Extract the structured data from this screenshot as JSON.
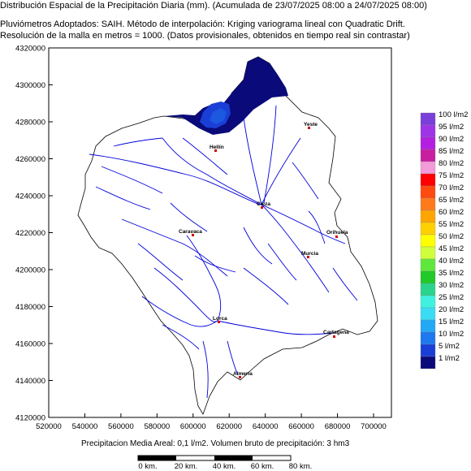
{
  "header": {
    "line1": "Distribución Espacial de la Precipitación Diaria (mm). (Acumulada de 23/07/2025 08:00 a 24/07/2025 08:00)",
    "line2": "Pluviómetros Adoptados: SAIH.  Método de interpolación: Kriging variograma lineal con Quadratic Drift.",
    "line3": "Resolución de la malla en metros = 1000. (Datos provisionales, obtenidos en tiempo real sin contrastar)"
  },
  "axes": {
    "y_ticks": [
      "4320000",
      "4300000",
      "4280000",
      "4260000",
      "4240000",
      "4220000",
      "4200000",
      "4180000",
      "4160000",
      "4140000",
      "4120000"
    ],
    "x_ticks": [
      "520000",
      "540000",
      "560000",
      "580000",
      "600000",
      "620000",
      "640000",
      "660000",
      "680000",
      "700000"
    ]
  },
  "map": {
    "towns": [
      "Yeste",
      "Hellín",
      "Cieza",
      "Orihuela",
      "Caravaca",
      "Murcia",
      "Lorca",
      "Cartagena",
      "Almería"
    ]
  },
  "legend": {
    "items": [
      {
        "label": "100 l/m2",
        "color": "#7b3fd9"
      },
      {
        "label": "95 l/m2",
        "color": "#9d35e6"
      },
      {
        "label": "90 l/m2",
        "color": "#b21fe0"
      },
      {
        "label": "85 l/m2",
        "color": "#c81ea0"
      },
      {
        "label": "80 l/m2",
        "color": "#f29bd8"
      },
      {
        "label": "75 l/m2",
        "color": "#ff0000"
      },
      {
        "label": "70 l/m2",
        "color": "#ff4a10"
      },
      {
        "label": "65 l/m2",
        "color": "#ff7a1a"
      },
      {
        "label": "60 l/m2",
        "color": "#ffa500"
      },
      {
        "label": "55 l/m2",
        "color": "#ffd000"
      },
      {
        "label": "50 l/m2",
        "color": "#ffff00"
      },
      {
        "label": "45 l/m2",
        "color": "#cfff3a"
      },
      {
        "label": "40 l/m2",
        "color": "#5fe83c"
      },
      {
        "label": "35 l/m2",
        "color": "#22c92a"
      },
      {
        "label": "30 l/m2",
        "color": "#2ad48a"
      },
      {
        "label": "25 l/m2",
        "color": "#3ff2e0"
      },
      {
        "label": "20 l/m2",
        "color": "#3adcf5"
      },
      {
        "label": "15 l/m2",
        "color": "#22a8f5"
      },
      {
        "label": "10 l/m2",
        "color": "#1e78ee"
      },
      {
        "label": "5 l/m2",
        "color": "#1a3fd6"
      },
      {
        "label": "1 l/m2",
        "color": "#0a0a7a"
      }
    ]
  },
  "footer": {
    "summary": "Precipitacion Media Areal: 0,1 l/m2. Volumen bruto de precipitación: 3 hm3"
  },
  "scalebar": {
    "labels": [
      "0 km.",
      "20 km.",
      "40 km.",
      "60 km.",
      "80 km."
    ]
  }
}
